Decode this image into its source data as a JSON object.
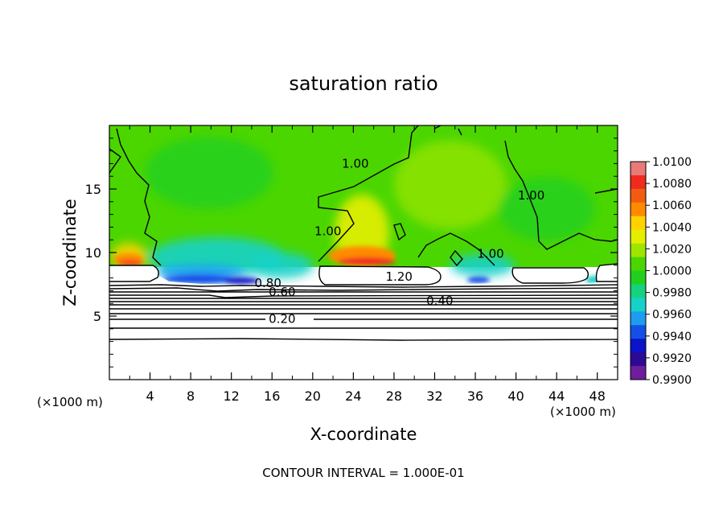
{
  "chart_data": {
    "type": "heatmap",
    "title": "saturation ratio",
    "xlabel": "X-coordinate",
    "ylabel": "Z-coordinate",
    "x_unit_label": "(×1000 m)",
    "xlim": [
      0,
      50
    ],
    "ylim": [
      0,
      20
    ],
    "x_ticks": [
      4,
      8,
      12,
      16,
      20,
      24,
      28,
      32,
      36,
      40,
      44,
      48
    ],
    "x_tick_labels": [
      "4",
      "8",
      "12",
      "16",
      "20",
      "24",
      "28",
      "32",
      "36",
      "40",
      "44",
      "48"
    ],
    "y_ticks": [
      5,
      10,
      15
    ],
    "y_tick_labels": [
      "5",
      "10",
      "15"
    ],
    "colorbar": {
      "min": 0.99,
      "max": 1.01,
      "labels": [
        "1.0100",
        "1.0080",
        "1.0060",
        "1.0040",
        "1.0020",
        "1.0000",
        "0.9980",
        "0.9960",
        "0.9940",
        "0.9920",
        "0.9900"
      ],
      "colors": [
        "#e87a7a",
        "#f02a1e",
        "#f25c10",
        "#ff8a00",
        "#ffd200",
        "#e6ee00",
        "#9ee600",
        "#4bd600",
        "#21cf1e",
        "#14d27e",
        "#14d2c8",
        "#1e9cf0",
        "#1450e6",
        "#0a14c8",
        "#2d0a96",
        "#6e1e9a"
      ]
    },
    "contour_labels": [
      {
        "text": "1.00",
        "x": 21.5,
        "z": 11.5
      },
      {
        "text": "1.00",
        "x": 24.2,
        "z": 16.8
      },
      {
        "text": "1.00",
        "x": 41.5,
        "z": 14.3
      },
      {
        "text": "1.00",
        "x": 37.5,
        "z": 9.7
      },
      {
        "text": "1.20",
        "x": 28.5,
        "z": 7.9
      },
      {
        "text": "0.80",
        "x": 15.6,
        "z": 7.4
      },
      {
        "text": "0.60",
        "x": 17.0,
        "z": 6.7
      },
      {
        "text": "0.40",
        "x": 32.5,
        "z": 6.0
      },
      {
        "text": "0.20",
        "x": 17.0,
        "z": 4.6
      }
    ],
    "footnote": "CONTOUR INTERVAL = 1.000E-01",
    "grid": false,
    "legend": "colorbar-right"
  }
}
